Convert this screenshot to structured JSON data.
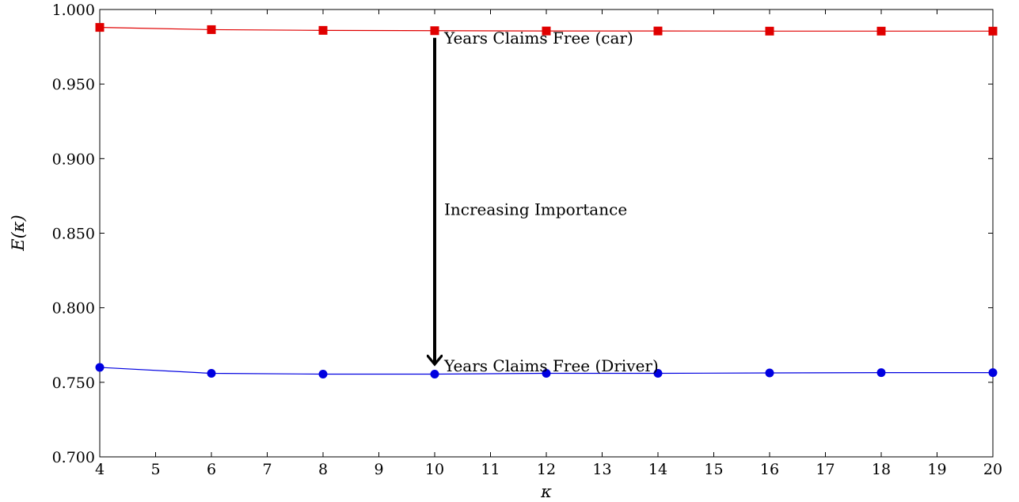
{
  "chart_data": {
    "type": "line",
    "title": "",
    "xlabel": "κ",
    "ylabel": "E(κ)",
    "xlim": [
      4,
      20
    ],
    "ylim": [
      0.7,
      1.0
    ],
    "x_ticks": [
      4,
      5,
      6,
      7,
      8,
      9,
      10,
      11,
      12,
      13,
      14,
      15,
      16,
      17,
      18,
      19,
      20
    ],
    "x_tick_labels": [
      "4",
      "5",
      "6",
      "7",
      "8",
      "9",
      "10",
      "11",
      "12",
      "13",
      "14",
      "15",
      "16",
      "17",
      "18",
      "19",
      "20"
    ],
    "y_ticks": [
      0.7,
      0.75,
      0.8,
      0.85,
      0.9,
      0.95,
      1.0
    ],
    "y_tick_labels": [
      "0.700",
      "0.750",
      "0.800",
      "0.850",
      "0.900",
      "0.950",
      "1.000"
    ],
    "grid": false,
    "series": [
      {
        "color": "#e00000",
        "marker": "square",
        "x": [
          4,
          6,
          8,
          10,
          12,
          14,
          16,
          18,
          20
        ],
        "y": [
          0.988,
          0.9865,
          0.986,
          0.9858,
          0.9856,
          0.9856,
          0.9855,
          0.9855,
          0.9855
        ]
      },
      {
        "color": "#0000e0",
        "marker": "circle",
        "x": [
          4,
          6,
          8,
          10,
          12,
          14,
          16,
          18,
          20
        ],
        "y": [
          0.76,
          0.756,
          0.7555,
          0.7555,
          0.756,
          0.756,
          0.7563,
          0.7565,
          0.7565
        ]
      }
    ],
    "annotations": [
      {
        "text": "Years Claims Free (car)",
        "x": 10,
        "y": 0.981
      },
      {
        "text": "Increasing Importance",
        "x": 10,
        "y": 0.866
      },
      {
        "text": "Years Claims Free (Driver)",
        "x": 10,
        "y": 0.761
      }
    ],
    "arrow": {
      "x": 10,
      "y_from": 0.981,
      "y_to": 0.761,
      "color": "#000000"
    }
  }
}
